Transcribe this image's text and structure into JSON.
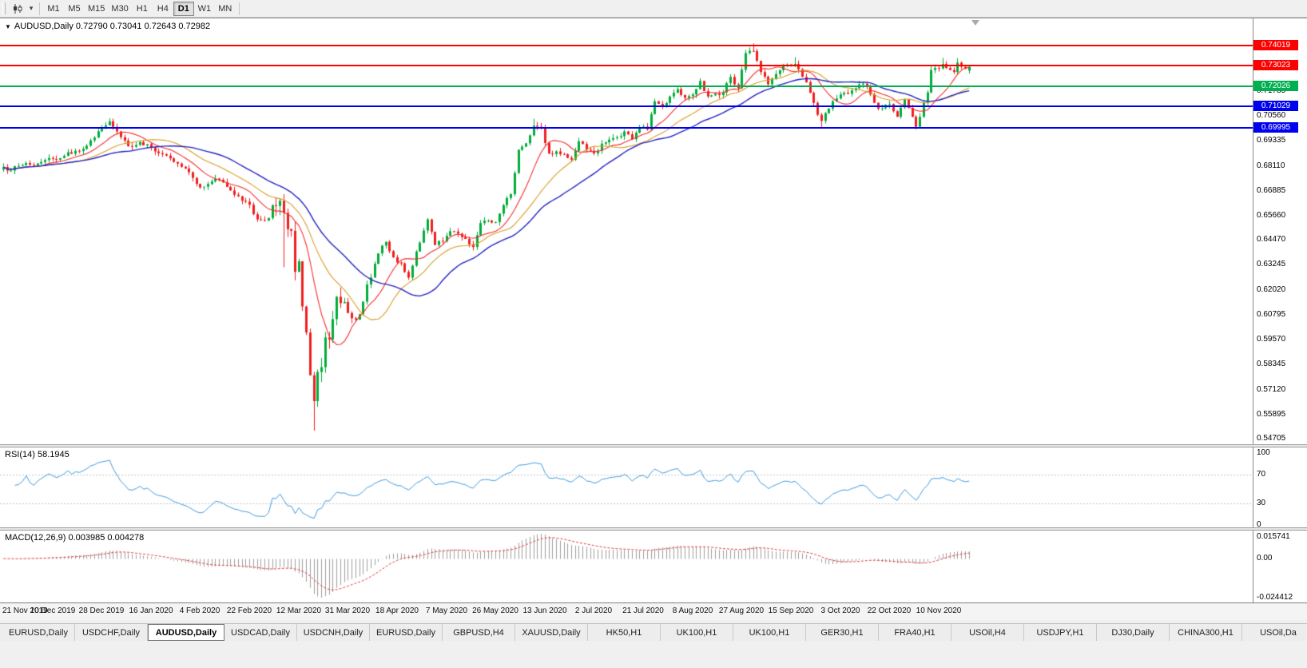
{
  "toolbar": {
    "timeframes": [
      {
        "label": "M1",
        "active": false
      },
      {
        "label": "M5",
        "active": false
      },
      {
        "label": "M15",
        "active": false
      },
      {
        "label": "M30",
        "active": false
      },
      {
        "label": "H1",
        "active": false
      },
      {
        "label": "H4",
        "active": false
      },
      {
        "label": "D1",
        "active": true
      },
      {
        "label": "W1",
        "active": false
      },
      {
        "label": "MN",
        "active": false
      }
    ]
  },
  "chart": {
    "title": "AUDUSD,Daily  0.72790 0.73041 0.72643 0.72982"
  },
  "panels": {
    "rsi_header": "RSI(14) 58.1945",
    "macd_header": "MACD(12,26,9) 0.003985 0.004278"
  },
  "tabs": [
    {
      "label": "EURUSD,Daily",
      "active": false
    },
    {
      "label": "USDCHF,Daily",
      "active": false
    },
    {
      "label": "AUDUSD,Daily",
      "active": true
    },
    {
      "label": "USDCAD,Daily",
      "active": false
    },
    {
      "label": "USDCNH,Daily",
      "active": false
    },
    {
      "label": "EURUSD,Daily",
      "active": false
    },
    {
      "label": "GBPUSD,H4",
      "active": false
    },
    {
      "label": "XAUUSD,Daily",
      "active": false
    },
    {
      "label": "HK50,H1",
      "active": false
    },
    {
      "label": "UK100,H1",
      "active": false
    },
    {
      "label": "UK100,H1",
      "active": false
    },
    {
      "label": "GER30,H1",
      "active": false
    },
    {
      "label": "FRA40,H1",
      "active": false
    },
    {
      "label": "USOil,H4",
      "active": false
    },
    {
      "label": "USDJPY,H1",
      "active": false
    },
    {
      "label": "DJ30,Daily",
      "active": false
    },
    {
      "label": "CHINA300,H1",
      "active": false
    },
    {
      "label": "USOil,Da",
      "active": false
    }
  ],
  "chart_data": {
    "type": "candlestick",
    "symbol": "AUDUSD",
    "timeframe": "Daily",
    "current_bar": {
      "open": 0.7279,
      "high": 0.73041,
      "low": 0.72643,
      "close": 0.72982
    },
    "bars": 256,
    "y_range": [
      0.5451,
      0.7516
    ],
    "y_axis_labels": [
      "0.71785",
      "0.70560",
      "0.69335",
      "0.68110",
      "0.66885",
      "0.65660",
      "0.64470",
      "0.63245",
      "0.62020",
      "0.60795",
      "0.59570",
      "0.58345",
      "0.57120",
      "0.55895",
      "0.54705"
    ],
    "x_labels": [
      "21 Nov 2019",
      "10 Dec 2019",
      "28 Dec 2019",
      "16 Jan 2020",
      "4 Feb 2020",
      "22 Feb 2020",
      "12 Mar 2020",
      "31 Mar 2020",
      "18 Apr 2020",
      "7 May 2020",
      "26 May 2020",
      "13 Jun 2020",
      "2 Jul 2020",
      "21 Jul 2020",
      "8 Aug 2020",
      "27 Aug 2020",
      "15 Sep 2020",
      "3 Oct 2020",
      "22 Oct 2020",
      "10 Nov 2020"
    ],
    "up_color": "#00ad39",
    "down_color": "#f01e1e",
    "price_path": [
      [
        0,
        0.6805
      ],
      [
        2,
        0.6788
      ],
      [
        4,
        0.681
      ],
      [
        6,
        0.6825
      ],
      [
        8,
        0.6812
      ],
      [
        10,
        0.683
      ],
      [
        13,
        0.6845
      ],
      [
        16,
        0.686
      ],
      [
        19,
        0.6885
      ],
      [
        22,
        0.691
      ],
      [
        24,
        0.695
      ],
      [
        26,
        0.6995
      ],
      [
        28,
        0.703
      ],
      [
        30,
        0.698
      ],
      [
        32,
        0.6935
      ],
      [
        34,
        0.6905
      ],
      [
        36,
        0.6928
      ],
      [
        39,
        0.69
      ],
      [
        42,
        0.6868
      ],
      [
        45,
        0.683
      ],
      [
        48,
        0.6798
      ],
      [
        50,
        0.6752
      ],
      [
        52,
        0.6705
      ],
      [
        54,
        0.6722
      ],
      [
        56,
        0.6748
      ],
      [
        58,
        0.673
      ],
      [
        60,
        0.669
      ],
      [
        62,
        0.6662
      ],
      [
        64,
        0.6635
      ],
      [
        65,
        0.662
      ],
      [
        67,
        0.6548
      ],
      [
        69,
        0.6542
      ],
      [
        71,
        0.6618
      ],
      [
        73,
        0.664
      ],
      [
        74,
        0.658
      ],
      [
        75,
        0.65
      ],
      [
        76,
        0.6492
      ],
      [
        77,
        0.629
      ],
      [
        78,
        0.6342
      ],
      [
        79,
        0.612
      ],
      [
        80,
        0.5992
      ],
      [
        81,
        0.5782
      ],
      [
        82,
        0.5655
      ],
      [
        83,
        0.5798
      ],
      [
        84,
        0.5822
      ],
      [
        85,
        0.5968
      ],
      [
        86,
        0.5958
      ],
      [
        87,
        0.6058
      ],
      [
        88,
        0.6168
      ],
      [
        90,
        0.6142
      ],
      [
        92,
        0.6062
      ],
      [
        94,
        0.6082
      ],
      [
        96,
        0.6228
      ],
      [
        98,
        0.633
      ],
      [
        101,
        0.6438
      ],
      [
        103,
        0.6362
      ],
      [
        105,
        0.6332
      ],
      [
        107,
        0.6262
      ],
      [
        109,
        0.639
      ],
      [
        112,
        0.6548
      ],
      [
        114,
        0.6422
      ],
      [
        116,
        0.644
      ],
      [
        118,
        0.649
      ],
      [
        120,
        0.6478
      ],
      [
        122,
        0.6452
      ],
      [
        124,
        0.6412
      ],
      [
        126,
        0.653
      ],
      [
        128,
        0.6542
      ],
      [
        130,
        0.6535
      ],
      [
        132,
        0.6618
      ],
      [
        134,
        0.6672
      ],
      [
        136,
        0.689
      ],
      [
        138,
        0.6922
      ],
      [
        140,
        0.7008
      ],
      [
        142,
        0.6998
      ],
      [
        144,
        0.6872
      ],
      [
        146,
        0.6882
      ],
      [
        148,
        0.6868
      ],
      [
        150,
        0.6842
      ],
      [
        152,
        0.6932
      ],
      [
        154,
        0.689
      ],
      [
        156,
        0.6872
      ],
      [
        158,
        0.692
      ],
      [
        160,
        0.694
      ],
      [
        162,
        0.6952
      ],
      [
        164,
        0.698
      ],
      [
        166,
        0.6942
      ],
      [
        168,
        0.7
      ],
      [
        170,
        0.699
      ],
      [
        172,
        0.7128
      ],
      [
        174,
        0.7102
      ],
      [
        176,
        0.7152
      ],
      [
        178,
        0.7188
      ],
      [
        180,
        0.7145
      ],
      [
        182,
        0.7162
      ],
      [
        184,
        0.7228
      ],
      [
        186,
        0.7152
      ],
      [
        188,
        0.7165
      ],
      [
        190,
        0.7172
      ],
      [
        192,
        0.7248
      ],
      [
        194,
        0.7192
      ],
      [
        196,
        0.7365
      ],
      [
        197,
        0.7376
      ],
      [
        198,
        0.7375
      ],
      [
        200,
        0.7272
      ],
      [
        202,
        0.7212
      ],
      [
        204,
        0.7262
      ],
      [
        206,
        0.7308
      ],
      [
        208,
        0.73
      ],
      [
        209,
        0.7312
      ],
      [
        212,
        0.7222
      ],
      [
        215,
        0.7062
      ],
      [
        216,
        0.7032
      ],
      [
        218,
        0.7092
      ],
      [
        220,
        0.7142
      ],
      [
        221,
        0.7162
      ],
      [
        224,
        0.7182
      ],
      [
        227,
        0.7215
      ],
      [
        229,
        0.7162
      ],
      [
        231,
        0.7092
      ],
      [
        234,
        0.7115
      ],
      [
        236,
        0.7052
      ],
      [
        238,
        0.7138
      ],
      [
        240,
        0.7052
      ],
      [
        241,
        0.7002
      ],
      [
        242,
        0.7052
      ],
      [
        243,
        0.7122
      ],
      [
        244,
        0.7172
      ],
      [
        245,
        0.7282
      ],
      [
        246,
        0.7292
      ],
      [
        247,
        0.729
      ],
      [
        248,
        0.7312
      ],
      [
        249,
        0.7292
      ],
      [
        250,
        0.7282
      ],
      [
        251,
        0.7272
      ],
      [
        252,
        0.7318
      ],
      [
        253,
        0.7298
      ],
      [
        254,
        0.7288
      ],
      [
        255,
        0.72982
      ]
    ],
    "wick_overrides": [
      [
        28,
        "high",
        0.7045
      ],
      [
        74,
        "low",
        0.6313
      ],
      [
        77,
        "low",
        0.6248
      ],
      [
        82,
        "low",
        0.551
      ],
      [
        140,
        "high",
        0.7042
      ],
      [
        198,
        "high",
        0.7413
      ],
      [
        209,
        "high",
        0.7345
      ],
      [
        216,
        "low",
        0.6995
      ],
      [
        241,
        "low",
        0.699
      ],
      [
        248,
        "high",
        0.7341
      ],
      [
        252,
        "high",
        0.734
      ]
    ],
    "moving_averages": [
      {
        "type": "sma",
        "period": 10,
        "color": "#f22c2c",
        "width": 1.1
      },
      {
        "type": "sma",
        "period": 21,
        "color": "#d99b26",
        "width": 1.1
      },
      {
        "type": "sma",
        "period": 34,
        "color": "#2222c0",
        "width": 1.4
      }
    ],
    "levels": [
      {
        "price": 0.74019,
        "label": "0.74019",
        "color": "#fd0000",
        "type": "resistance"
      },
      {
        "price": 0.73023,
        "label": "0.73023",
        "color": "#fd0000",
        "type": "resistance"
      },
      {
        "price": 0.72026,
        "label": "0.72026",
        "color": "#00b050",
        "type": "pivot"
      },
      {
        "price": 0.71029,
        "label": "0.71029",
        "color": "#0000f0",
        "type": "support"
      },
      {
        "price": 0.69995,
        "label": "0.69995",
        "color": "#0000f0",
        "type": "support"
      }
    ],
    "rsi": {
      "period": 14,
      "value": 58.1945,
      "color": "#3e9ade",
      "guides": [
        70,
        30
      ],
      "scale": [
        {
          "label": "100",
          "value": 100
        },
        {
          "label": "70",
          "value": 70
        },
        {
          "label": "30",
          "value": 30
        },
        {
          "label": "0",
          "value": 0
        }
      ]
    },
    "macd": {
      "fast": 12,
      "slow": 26,
      "signal": 9,
      "value": 0.003985,
      "signal_value": 0.004278,
      "hist_color": "#9e9e9e",
      "signal_color": "#e23a3a",
      "scale": [
        "0.015741",
        "0.00",
        "-0.024412"
      ]
    }
  }
}
